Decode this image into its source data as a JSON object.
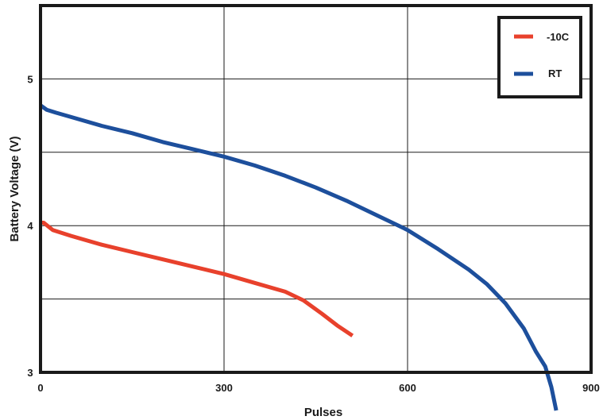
{
  "chart_data": {
    "type": "line",
    "title": "",
    "xlabel": "Pulses",
    "ylabel": "Battery Voltage (V)",
    "xlim": [
      0,
      900
    ],
    "ylim": [
      3,
      5.5
    ],
    "x_ticks": [
      0,
      300,
      600,
      900
    ],
    "x_tick_labels": [
      "0",
      "300",
      "600",
      "900"
    ],
    "x_gridlines": [
      300,
      600
    ],
    "y_ticks": [
      3,
      4,
      5
    ],
    "y_tick_labels": [
      "3",
      "4",
      "5"
    ],
    "y_gridlines": [
      3.5,
      4,
      4.5,
      5
    ],
    "grid": true,
    "legend_position": "top-right",
    "series": [
      {
        "name": "-10C",
        "color": "#e8412c",
        "points": [
          [
            0,
            4.02
          ],
          [
            5,
            4.02
          ],
          [
            20,
            3.97
          ],
          [
            50,
            3.93
          ],
          [
            100,
            3.87
          ],
          [
            150,
            3.82
          ],
          [
            200,
            3.77
          ],
          [
            250,
            3.72
          ],
          [
            300,
            3.67
          ],
          [
            350,
            3.61
          ],
          [
            400,
            3.55
          ],
          [
            430,
            3.49
          ],
          [
            460,
            3.4
          ],
          [
            485,
            3.32
          ],
          [
            510,
            3.25
          ]
        ]
      },
      {
        "name": "RT",
        "color": "#1d4f9c",
        "points": [
          [
            0,
            4.82
          ],
          [
            10,
            4.79
          ],
          [
            25,
            4.77
          ],
          [
            50,
            4.74
          ],
          [
            100,
            4.68
          ],
          [
            150,
            4.63
          ],
          [
            200,
            4.57
          ],
          [
            250,
            4.52
          ],
          [
            300,
            4.47
          ],
          [
            350,
            4.41
          ],
          [
            400,
            4.34
          ],
          [
            450,
            4.26
          ],
          [
            500,
            4.17
          ],
          [
            550,
            4.07
          ],
          [
            600,
            3.97
          ],
          [
            650,
            3.84
          ],
          [
            700,
            3.7
          ],
          [
            730,
            3.6
          ],
          [
            760,
            3.47
          ],
          [
            790,
            3.3
          ],
          [
            810,
            3.14
          ],
          [
            825,
            3.04
          ],
          [
            835,
            2.9
          ],
          [
            843,
            2.74
          ]
        ]
      }
    ]
  }
}
